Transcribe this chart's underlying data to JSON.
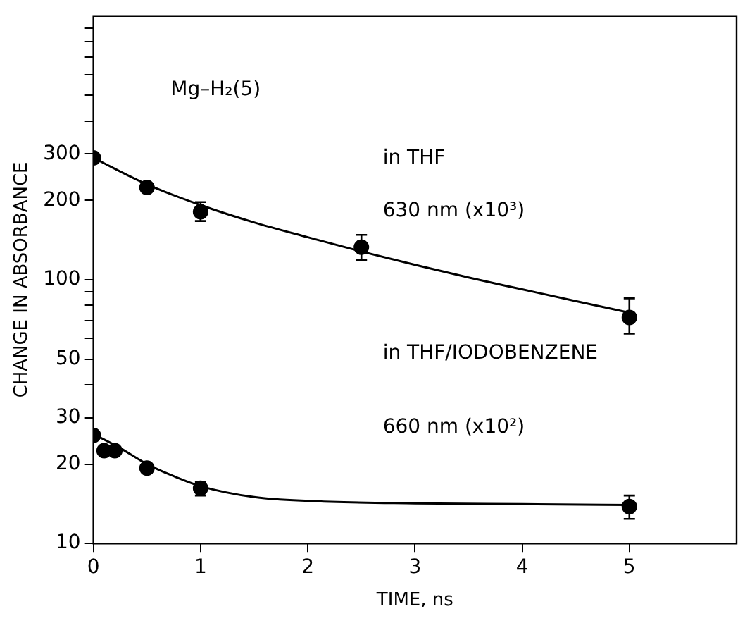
{
  "chart_data": {
    "type": "scatter",
    "xlabel": "TIME, ns",
    "ylabel": "CHANGE IN ABSORBANCE",
    "log": "y",
    "grid": false,
    "legend": false,
    "marker": "circle",
    "xlim": [
      0,
      6
    ],
    "xticks": [
      0,
      1,
      2,
      3,
      4,
      5
    ],
    "ylim": [
      10,
      1000
    ],
    "yticks": [
      10,
      20,
      30,
      {
        "value": 40,
        "label": null
      },
      50,
      {
        "value": 60,
        "label": null
      },
      {
        "value": 70,
        "label": null
      },
      {
        "value": 80,
        "label": null
      },
      {
        "value": 90,
        "label": null
      },
      100,
      200,
      300,
      {
        "value": 400,
        "label": null
      },
      {
        "value": 500,
        "label": null
      },
      {
        "value": 600,
        "label": null
      },
      {
        "value": 700,
        "label": null
      },
      {
        "value": 800,
        "label": null
      },
      {
        "value": 900,
        "label": null
      }
    ],
    "annotations": [
      "Mg–H₂(5)",
      "in THF",
      "630 nm (x10³)",
      "in THF/IODOBENZENE",
      "660 nm (x10²)"
    ],
    "series": [
      {
        "type": "scatter",
        "color": "#000000",
        "x": [
          0,
          0.5,
          1,
          2.5,
          5
        ],
        "values": [
          290,
          224,
          181,
          133,
          72
        ],
        "errors": [
          null,
          null,
          [
            167,
            197
          ],
          [
            119,
            148
          ],
          [
            62.5,
            85
          ]
        ]
      },
      {
        "type": "scatter",
        "color": "#000000",
        "x": [
          0,
          0.1,
          0.2,
          0.5,
          1,
          5
        ],
        "values": [
          25.7,
          22.5,
          22.5,
          19.3,
          16.2,
          13.8
        ],
        "errors": [
          null,
          null,
          null,
          [
            18.6,
            20
          ],
          [
            15.2,
            17.1
          ],
          [
            12.4,
            15.2
          ]
        ]
      },
      {
        "type": "line",
        "color": "#000000",
        "marker": "none",
        "x": [
          0,
          0.5,
          1,
          1.5,
          2,
          2.5,
          3,
          3.5,
          4,
          4.5,
          5
        ],
        "values": [
          290,
          230,
          192,
          165,
          145,
          128,
          114,
          102,
          92,
          83,
          75
        ]
      },
      {
        "type": "line",
        "color": "#000000",
        "marker": "none",
        "x": [
          0,
          0.25,
          0.5,
          0.75,
          1,
          1.5,
          2,
          3,
          4,
          5
        ],
        "values": [
          26,
          23,
          20,
          18,
          16.5,
          15,
          14.5,
          14.2,
          14.1,
          14
        ]
      }
    ]
  }
}
